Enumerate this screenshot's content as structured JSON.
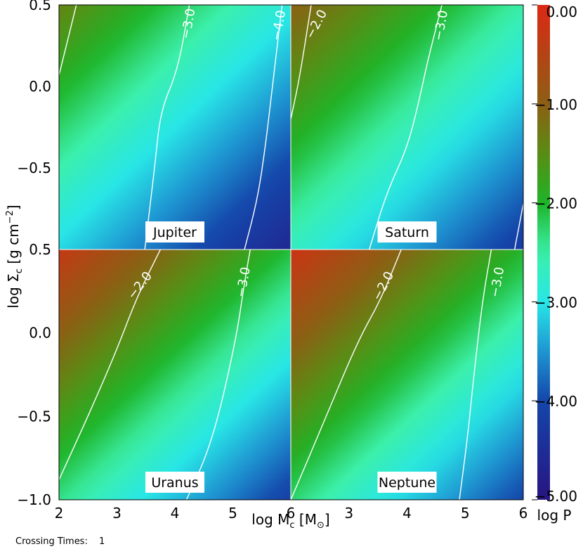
{
  "chart_data": {
    "type": "heatmap",
    "xlabel": "log M",
    "xlabel_sub": "c",
    "xlabel_unit": "[M",
    "xlabel_unit_sub": "⊙",
    "xlabel_unit_close": "]",
    "ylabel": "log Σ",
    "ylabel_sub": "c",
    "ylabel_unit": " [g cm",
    "ylabel_unit_sup": "−2",
    "ylabel_unit_close": "]",
    "colorbar_label": "log P",
    "colorbar_range": [
      -5.0,
      0.0
    ],
    "colorbar_ticks": [
      "0.00",
      "−1.00",
      "−2.00",
      "−3.00",
      "−4.00",
      "−5.00"
    ],
    "xlim": [
      2,
      6
    ],
    "ylim": [
      -1.0,
      0.5
    ],
    "x_ticks": [
      "2",
      "3",
      "4",
      "5",
      "6"
    ],
    "y_ticks_upper": [
      "0.5",
      "0.0",
      "−0.5"
    ],
    "y_ticks_lower": [
      "0.5",
      "0.0",
      "−0.5",
      "−1.0"
    ],
    "panels": [
      {
        "name": "Jupiter",
        "base": -1.4,
        "slope": 2.0,
        "contours": [
          {
            "level": -2.0,
            "label": "",
            "points": [
              [
                2.0,
                0.07
              ],
              [
                2.3,
                0.5
              ]
            ]
          },
          {
            "level": -3.0,
            "label": "−3.0",
            "points": [
              [
                3.48,
                -1.0
              ],
              [
                3.65,
                -0.5
              ],
              [
                3.75,
                -0.15
              ],
              [
                4.05,
                0.1
              ],
              [
                4.25,
                0.5
              ]
            ]
          },
          {
            "level": -4.0,
            "label": "−4.0",
            "points": [
              [
                5.2,
                -1.0
              ],
              [
                5.42,
                -0.7
              ],
              [
                5.55,
                -0.4
              ],
              [
                5.7,
                0.05
              ],
              [
                5.85,
                0.5
              ]
            ]
          }
        ],
        "labels": [
          {
            "text": "−3.0",
            "x": 4.3,
            "y": 0.38,
            "angle": -80
          },
          {
            "text": "−4.0",
            "x": 5.86,
            "y": 0.37,
            "angle": -80
          }
        ]
      },
      {
        "name": "Saturn",
        "base": -1.0,
        "slope": 2.0,
        "contours": [
          {
            "level": -2.0,
            "label": "−2.0",
            "points": [
              [
                2.0,
                -0.2
              ],
              [
                2.15,
                0.05
              ],
              [
                2.35,
                0.5
              ]
            ]
          },
          {
            "level": -3.0,
            "label": "−3.0",
            "points": [
              [
                3.35,
                -1.0
              ],
              [
                3.65,
                -0.65
              ],
              [
                4.0,
                -0.38
              ],
              [
                4.2,
                -0.1
              ],
              [
                4.35,
                0.15
              ],
              [
                4.6,
                0.5
              ]
            ]
          },
          {
            "level": -4.0,
            "label": "",
            "points": [
              [
                5.85,
                -1.0
              ],
              [
                6.0,
                -0.72
              ]
            ]
          }
        ],
        "labels": [
          {
            "text": "−2.0",
            "x": 2.5,
            "y": 0.37,
            "angle": -62
          },
          {
            "text": "−3.0",
            "x": 4.65,
            "y": 0.37,
            "angle": -80
          }
        ]
      },
      {
        "name": "Uranus",
        "base": -0.3,
        "slope": 2.4,
        "contours": [
          {
            "level": -2.0,
            "label": "−2.0",
            "points": [
              [
                2.0,
                -0.88
              ],
              [
                2.5,
                -0.5
              ],
              [
                3.0,
                -0.1
              ],
              [
                3.35,
                0.22
              ],
              [
                3.75,
                0.5
              ]
            ]
          },
          {
            "level": -3.0,
            "label": "−3.0",
            "points": [
              [
                4.2,
                -1.0
              ],
              [
                4.65,
                -0.65
              ],
              [
                5.05,
                -0.05
              ],
              [
                5.2,
                0.3
              ],
              [
                5.3,
                0.5
              ]
            ]
          }
        ],
        "labels": [
          {
            "text": "−2.0",
            "x": 3.45,
            "y": 0.27,
            "angle": -52
          },
          {
            "text": "−3.0",
            "x": 5.25,
            "y": 0.3,
            "angle": -80
          }
        ]
      },
      {
        "name": "Neptune",
        "base": -0.2,
        "slope": 2.4,
        "contours": [
          {
            "level": -2.0,
            "label": "−2.0",
            "points": [
              [
                2.0,
                -1.0
              ],
              [
                2.55,
                -0.55
              ],
              [
                3.15,
                -0.05
              ],
              [
                3.55,
                0.2
              ],
              [
                3.9,
                0.5
              ]
            ]
          },
          {
            "level": -3.0,
            "label": "−3.0",
            "points": [
              [
                4.9,
                -1.0
              ],
              [
                5.05,
                -0.6
              ],
              [
                5.15,
                -0.25
              ],
              [
                5.3,
                0.2
              ],
              [
                5.45,
                0.5
              ]
            ]
          }
        ],
        "labels": [
          {
            "text": "−2.0",
            "x": 3.65,
            "y": 0.27,
            "angle": -62
          },
          {
            "text": "−3.0",
            "x": 5.62,
            "y": 0.3,
            "angle": -80
          }
        ]
      }
    ]
  },
  "footer": {
    "label": "Crossing Times:",
    "value": "1"
  }
}
